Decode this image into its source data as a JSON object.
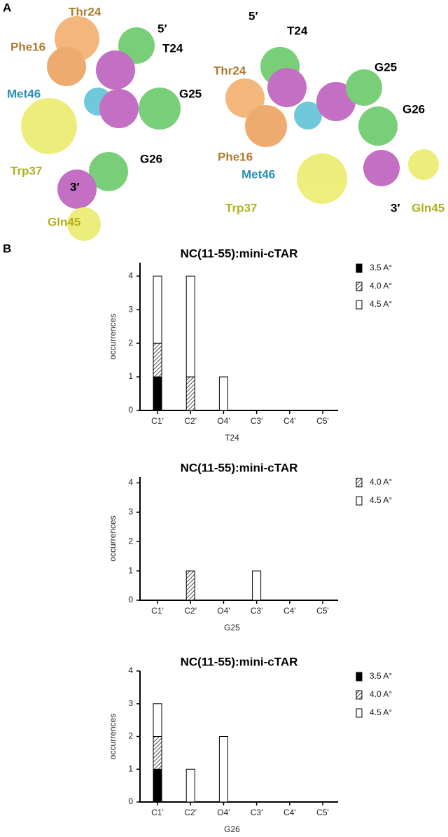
{
  "figure": {
    "panel_a_label": "A",
    "panel_b_label": "B",
    "panel_a": {
      "left": {
        "thr24": "Thr24",
        "phe16": "Phe16",
        "met46": "Met46",
        "trp37": "Trp37",
        "gln45": "Gln45",
        "five_prime": "5′",
        "three_prime": "3′",
        "t24": "T24",
        "g25": "G25",
        "g26": "G26"
      },
      "right": {
        "thr24": "Thr24",
        "phe16": "Phe16",
        "met46": "Met46",
        "trp37": "Trp37",
        "gln45": "Gln45",
        "five_prime": "5′",
        "three_prime": "3′",
        "t24": "T24",
        "g25": "G25",
        "g26": "G26"
      }
    }
  },
  "chart_data": [
    {
      "type": "bar",
      "stacked": true,
      "title": "NC(11-55):mini-cTAR",
      "x_label": "T24",
      "y_label": "occurrences",
      "categories": [
        "C1'",
        "C2'",
        "O4'",
        "C3'",
        "C4'",
        "C5'"
      ],
      "series": [
        {
          "name": "3.5 A°",
          "color": "#000000",
          "hatch": false,
          "values": [
            1,
            0,
            0,
            0,
            0,
            0
          ]
        },
        {
          "name": "4.0 A°",
          "color": "#ffffff",
          "hatch": true,
          "values": [
            1,
            1,
            0,
            0,
            0,
            0
          ]
        },
        {
          "name": "4.5 A°",
          "color": "#ffffff",
          "hatch": false,
          "values": [
            2,
            3,
            1,
            0,
            0,
            0
          ]
        }
      ],
      "ylim": [
        0,
        4.4
      ],
      "yticks": [
        0,
        1,
        2,
        3,
        4
      ],
      "legend": "right"
    },
    {
      "type": "bar",
      "stacked": true,
      "title": "NC(11-55):mini-cTAR",
      "x_label": "G25",
      "y_label": "occurrences",
      "categories": [
        "C1'",
        "C2'",
        "O4'",
        "C3'",
        "C4'",
        "C5'"
      ],
      "series": [
        {
          "name": "4.0 A°",
          "color": "#ffffff",
          "hatch": true,
          "values": [
            0,
            1,
            0,
            0,
            0,
            0
          ]
        },
        {
          "name": "4.5 A°",
          "color": "#ffffff",
          "hatch": false,
          "values": [
            0,
            0,
            0,
            1,
            0,
            0
          ]
        }
      ],
      "ylim": [
        0,
        4.2
      ],
      "yticks": [
        0,
        1,
        2,
        3,
        4
      ],
      "legend": "right"
    },
    {
      "type": "bar",
      "stacked": true,
      "title": "NC(11-55):mini-cTAR",
      "x_label": "G26",
      "y_label": "occurrences",
      "categories": [
        "C1'",
        "C2'",
        "O4'",
        "C3'",
        "C4'",
        "C5'"
      ],
      "series": [
        {
          "name": "3.5 A°",
          "color": "#000000",
          "hatch": false,
          "values": [
            1,
            0,
            0,
            0,
            0,
            0
          ]
        },
        {
          "name": "4.0 A°",
          "color": "#ffffff",
          "hatch": true,
          "values": [
            1,
            0,
            0,
            0,
            0,
            0
          ]
        },
        {
          "name": "4.5 A°",
          "color": "#ffffff",
          "hatch": false,
          "values": [
            1,
            1,
            2,
            0,
            0,
            0
          ]
        }
      ],
      "ylim": [
        0,
        4
      ],
      "yticks": [
        0,
        1,
        2,
        3,
        4
      ],
      "legend": "right"
    }
  ]
}
